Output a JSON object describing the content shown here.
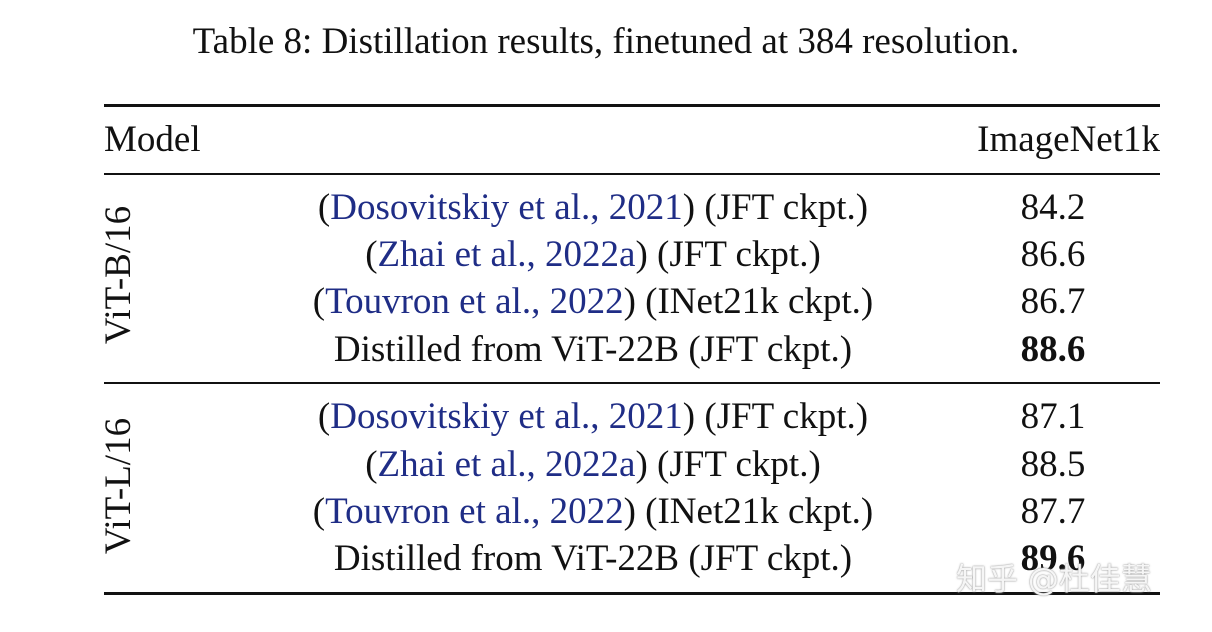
{
  "caption": "Table 8: Distillation results, finetuned at 384 resolution.",
  "headers": {
    "model": "Model",
    "metric": "ImageNet1k"
  },
  "colors": {
    "citation": "#1f2d86",
    "text": "#111111"
  },
  "groups": [
    {
      "label": "ViT-B/16",
      "rows": [
        {
          "open": "(",
          "cite": "Dosovitskiy et al., 2021",
          "close": ")",
          "suffix": " (JFT ckpt.)",
          "score": "84.2"
        },
        {
          "open": "(",
          "cite": "Zhai et al., 2022a",
          "close": ")",
          "suffix": " (JFT ckpt.)",
          "score": "86.6"
        },
        {
          "open": "(",
          "cite": "Touvron et al., 2022",
          "close": ")",
          "suffix": " (INet21k ckpt.)",
          "score": "86.7"
        },
        {
          "plain": "Distilled from ViT-22B (JFT ckpt.)",
          "score": "88.6",
          "best": true
        }
      ]
    },
    {
      "label": "ViT-L/16",
      "rows": [
        {
          "open": "(",
          "cite": "Dosovitskiy et al., 2021",
          "close": ")",
          "suffix": " (JFT ckpt.)",
          "score": "87.1"
        },
        {
          "open": "(",
          "cite": "Zhai et al., 2022a",
          "close": ")",
          "suffix": " (JFT ckpt.)",
          "score": "88.5"
        },
        {
          "open": "(",
          "cite": "Touvron et al., 2022",
          "close": ")",
          "suffix": " (INet21k ckpt.)",
          "score": "87.7"
        },
        {
          "plain": "Distilled from ViT-22B (JFT ckpt.)",
          "score": "89.6",
          "best": true
        }
      ]
    }
  ],
  "watermark": "知乎 @杜佳慧"
}
